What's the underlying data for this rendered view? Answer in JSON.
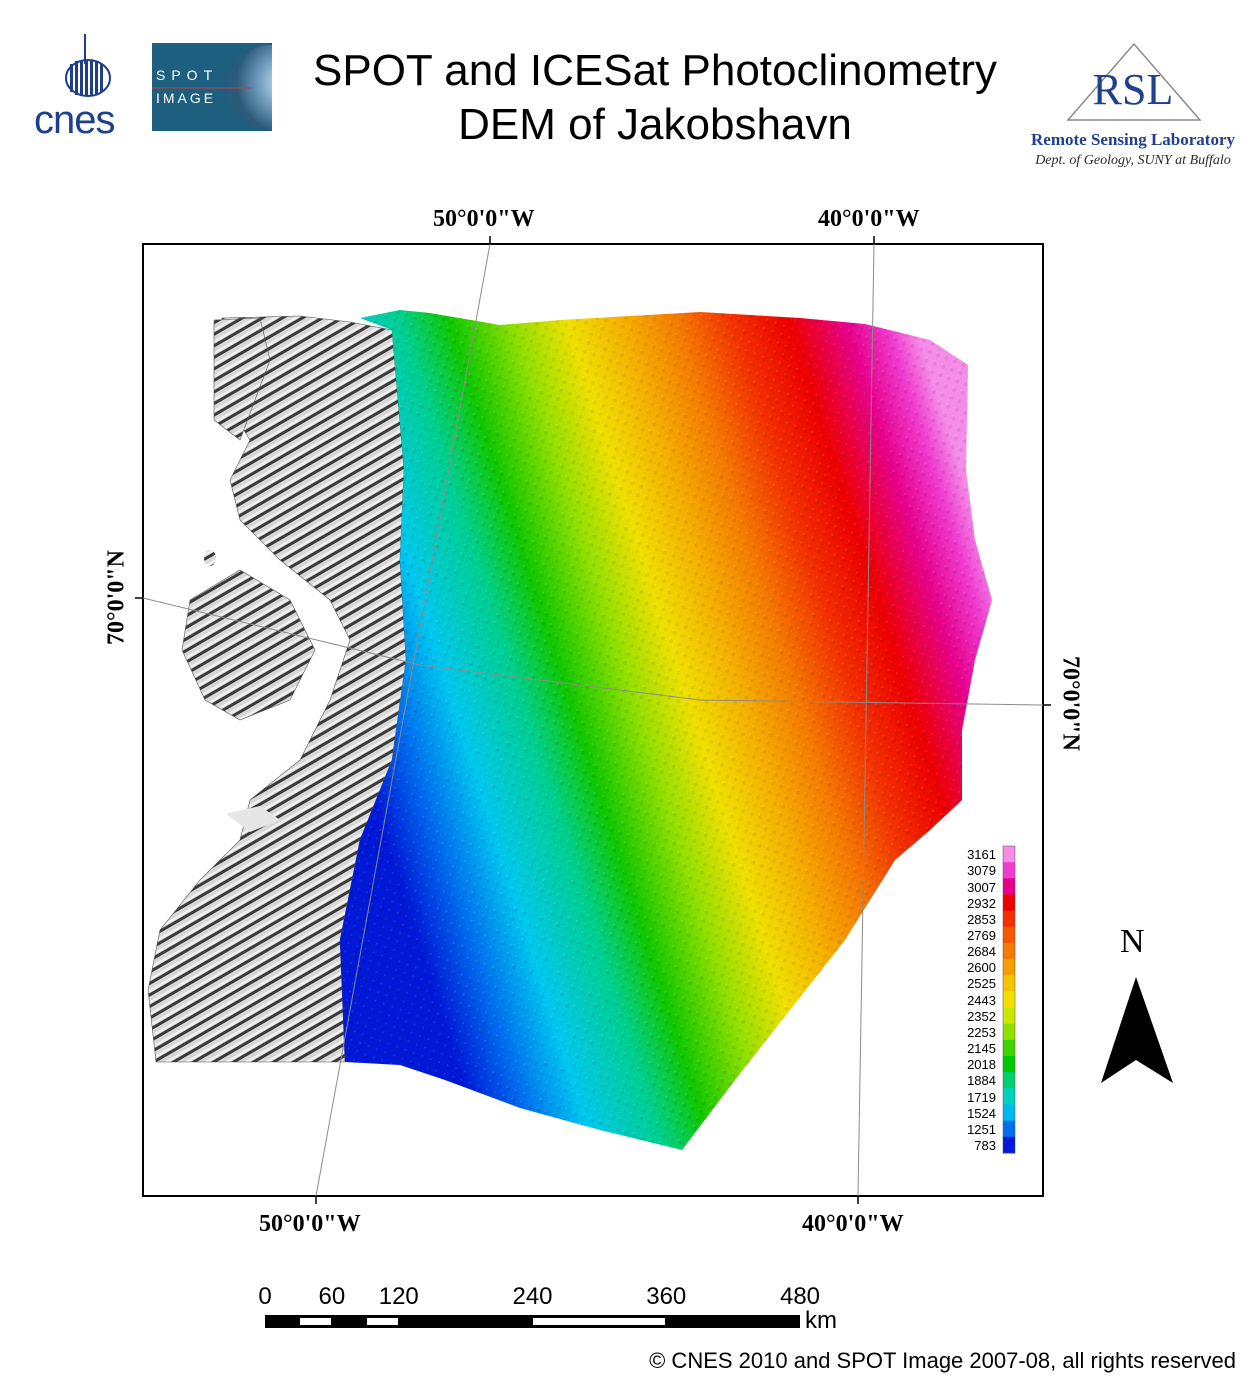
{
  "header": {
    "title_line1": "SPOT and ICESat Photoclinometry",
    "title_line2": "DEM of Jakobshavn"
  },
  "logos": {
    "cnes": "cnes",
    "spot_line1": "SPOT",
    "spot_line2": "IMAGE",
    "rsl": "RSL",
    "rsl_name": "Remote Sensing Laboratory",
    "rsl_dept": "Dept. of Geology, SUNY at Buffalo"
  },
  "graticule": {
    "top_left": "50°0'0\"W",
    "top_right": "40°0'0\"W",
    "bottom_left": "50°0'0\"W",
    "bottom_right": "40°0'0\"W",
    "left": "70°0'0\"N",
    "right": "70°0'0\"N"
  },
  "legend": {
    "values": [
      "3161",
      "3079",
      "3007",
      "2932",
      "2853",
      "2769",
      "2684",
      "2600",
      "2525",
      "2443",
      "2352",
      "2253",
      "2145",
      "2018",
      "1884",
      "1719",
      "1524",
      "1251",
      "783"
    ],
    "colors": [
      "#f58ce8",
      "#f03cd0",
      "#e8008a",
      "#ee0000",
      "#f43000",
      "#f65800",
      "#f57a00",
      "#f5a000",
      "#f5c400",
      "#f0e000",
      "#c8e800",
      "#8ee000",
      "#40d400",
      "#00c800",
      "#00d070",
      "#00d0c0",
      "#00b8f0",
      "#0070f0",
      "#0018d8"
    ]
  },
  "north_arrow": {
    "label": "N"
  },
  "scale_bar": {
    "ticks": [
      "0",
      "60",
      "120",
      "240",
      "360",
      "480"
    ],
    "unit": "km"
  },
  "footer": {
    "copyright": "© CNES 2010 and SPOT Image 2007-08, all rights reserved"
  }
}
